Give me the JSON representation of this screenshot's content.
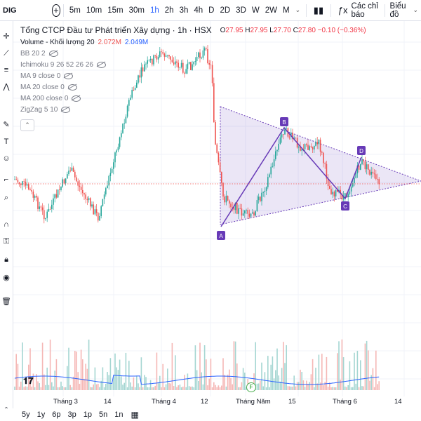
{
  "symbol": "DIG",
  "toolbar": {
    "intervals": [
      "5m",
      "10m",
      "15m",
      "30m",
      "1h",
      "2h",
      "3h",
      "4h",
      "D",
      "2D",
      "3D",
      "W",
      "2W",
      "M"
    ],
    "active_interval": "1h",
    "indicators_label": "Các chỉ báo",
    "chart_type_label": "Biểu đồ"
  },
  "legend": {
    "title": "Tổng CTCP Đầu tư Phát triển Xây dựng · 1h · HSX",
    "ohlc": {
      "o_label": "O",
      "o": "27.95",
      "h_label": "H",
      "h": "27.95",
      "l_label": "L",
      "l": "27.70",
      "c_label": "C",
      "c": "27.80",
      "change": "−0.10 (−0.36%)"
    },
    "volume_label": "Volume - Khối lượng 20",
    "volume_v1": "2.072M",
    "volume_v2": "2.049M",
    "indicators": [
      "BB 20 2",
      "Ichimoku 9 26 52 26 26",
      "MA 9 close 0",
      "MA 20 close 0",
      "MA 200 close 0",
      "ZigZag 5 10"
    ]
  },
  "pattern_points": [
    "A",
    "B",
    "C",
    "D"
  ],
  "event_marker": "F",
  "time_axis": [
    "Tháng 3",
    "14",
    "Tháng 4",
    "12",
    "Tháng Năm",
    "15",
    "Tháng 6",
    "14"
  ],
  "ranges": [
    "5y",
    "1y",
    "6p",
    "3p",
    "1p",
    "5n",
    "1n"
  ],
  "colors": {
    "up": "#26a69a",
    "down": "#ef5350",
    "pattern": "#673ab7",
    "accent": "#2962ff"
  },
  "left_tools": [
    "cursor-icon",
    "trend-line-icon",
    "fib-icon",
    "brush-icon",
    "text-icon",
    "emoji-icon",
    "ruler-icon",
    "zoom-icon",
    "magnet-icon",
    "lock-icon",
    "eye-icon",
    "trash-icon"
  ]
}
